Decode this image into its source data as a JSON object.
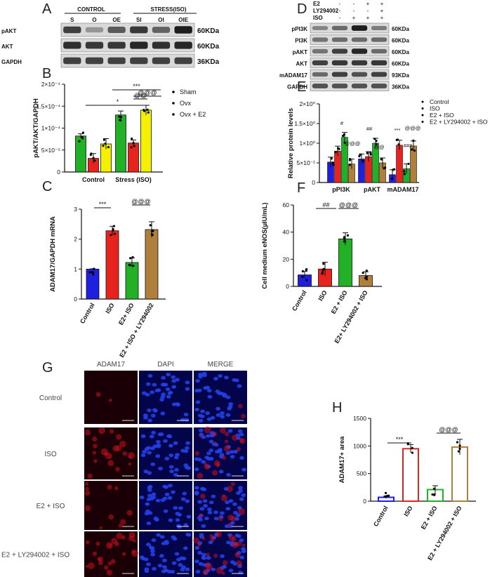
{
  "panel_letters": [
    "A",
    "B",
    "C",
    "D",
    "E",
    "F",
    "G",
    "H"
  ],
  "panelA": {
    "group_headers": [
      "CONTROL",
      "STRESS(ISO)"
    ],
    "lanes": [
      "S",
      "O",
      "OE",
      "SI",
      "OI",
      "OIE"
    ],
    "rows": [
      "pAKT",
      "AKT",
      "GAPDH"
    ],
    "mw": [
      "60KDa",
      "60KDa",
      "36KDa"
    ]
  },
  "panelD": {
    "treat_rows": [
      {
        "label": "E2",
        "signs": [
          "-",
          "-",
          "+",
          "+"
        ]
      },
      {
        "label": "LY294002",
        "signs": [
          "-",
          "-",
          "-",
          "+"
        ]
      },
      {
        "label": "ISO",
        "signs": [
          "-",
          "+",
          "+",
          "+"
        ]
      }
    ],
    "rows": [
      "pPI3K",
      "PI3K",
      "pAKT",
      "AKT",
      "mADAM17",
      "GAPDH"
    ],
    "mw": [
      "60KDa",
      "60KDa",
      "60KDa",
      "60KDa",
      "93KDa",
      "36KDa"
    ]
  },
  "panelG": {
    "col_headers": [
      "ADAM17",
      "DAPI",
      "MERGE"
    ],
    "row_labels": [
      "Control",
      "ISO",
      "E2 + ISO",
      "E2 + LY294002 + ISO"
    ]
  },
  "colors": {
    "blue": "#1f1fe0",
    "red": "#e8231e",
    "green": "#22b026",
    "brown": "#b07f3c",
    "yellow": "#f5f000",
    "micro_red": "#c0101a",
    "micro_blue": "#1530c8"
  },
  "chart_data": [
    {
      "id": "B",
      "type": "bar",
      "ylabel": "pAKT/AKT/GAPDH",
      "categories": [
        "Control",
        "Stress (ISO)"
      ],
      "yticks": [
        "0",
        "5×10⁻⁵",
        "1×10⁻⁴",
        "1.5×10⁻⁴",
        "2×10⁻⁴"
      ],
      "ylim": [
        0,
        0.0002
      ],
      "series": [
        {
          "name": "Sham",
          "color": "#22b026",
          "values": [
            8.2e-05,
            0.00013
          ],
          "err": [
            5e-06,
            9e-06
          ]
        },
        {
          "name": "Ovx",
          "color": "#e8231e",
          "values": [
            3.1e-05,
            6.6e-05
          ],
          "err": [
            1.1e-05,
            7e-06
          ]
        },
        {
          "name": "Ovx + E2",
          "color": "#f5f000",
          "values": [
            6.4e-05,
            0.000141
          ],
          "err": [
            1.2e-05,
            1.1e-05
          ]
        }
      ],
      "sig": [
        "*",
        "***",
        "@@",
        "@@@"
      ],
      "legend": "right"
    },
    {
      "id": "C",
      "type": "bar",
      "ylabel": "ADAM17/GAPDH mRNA",
      "categories": [
        "Control",
        "ISO",
        "E2+ ISO",
        "E2 + ISO + LY294002"
      ],
      "yticks": [
        "0",
        "1",
        "2",
        "3"
      ],
      "ylim": [
        0,
        3
      ],
      "values": [
        1.0,
        2.28,
        1.22,
        2.32
      ],
      "err": [
        0.01,
        0.15,
        0.15,
        0.26
      ],
      "colors": [
        "#1f1fe0",
        "#e8231e",
        "#22b026",
        "#b07f3c"
      ],
      "sig": [
        "***",
        "@@@"
      ]
    },
    {
      "id": "E",
      "type": "bar",
      "ylabel": "Relative protein levels",
      "categories": [
        "pPI3K",
        "pAKT",
        "mADAM17"
      ],
      "yticks": [
        "0",
        "5×10⁻¹",
        "1×10⁰",
        "1.5×10⁰",
        "2×10⁰"
      ],
      "ylim": [
        0,
        2
      ],
      "series": [
        {
          "name": "Control",
          "color": "#1f1fe0",
          "values": [
            0.52,
            0.6,
            0.2
          ]
        },
        {
          "name": "ISO",
          "color": "#e8231e",
          "values": [
            0.8,
            0.66,
            0.95
          ]
        },
        {
          "name": "E2 + ISO",
          "color": "#22b026",
          "values": [
            1.15,
            1.0,
            0.35
          ]
        },
        {
          "name": "E2 + LY294002 + ISO",
          "color": "#b07f3c",
          "values": [
            0.47,
            0.5,
            0.93
          ]
        }
      ],
      "sig": [
        "#",
        "@@@",
        "##",
        "@@",
        "***",
        "###",
        "@@@"
      ],
      "legend": "top-right"
    },
    {
      "id": "F",
      "type": "bar",
      "ylabel": "Cell medium eNOS(µIU/mL)",
      "categories": [
        "Control",
        "ISO",
        "E2 + ISO",
        "E2+ LY294002 + ISO"
      ],
      "yticks": [
        "0",
        "20",
        "40",
        "60"
      ],
      "ylim": [
        0,
        60
      ],
      "values": [
        8.5,
        12.8,
        35.0,
        8.0
      ],
      "err": [
        2.5,
        5.0,
        4.5,
        2.8
      ],
      "colors": [
        "#1f1fe0",
        "#e8231e",
        "#22b026",
        "#b07f3c"
      ],
      "sig": [
        "##",
        "@@@"
      ]
    },
    {
      "id": "H",
      "type": "bar",
      "ylabel": "ADAM17+ area",
      "categories": [
        "Control",
        "ISO",
        "E2 + ISO",
        "E2 + LY294002 + ISO"
      ],
      "yticks": [
        "0",
        "500",
        "1000",
        "1500"
      ],
      "ylim": [
        0,
        1500
      ],
      "values": [
        70,
        950,
        210,
        980
      ],
      "err": [
        20,
        75,
        70,
        140
      ],
      "colors": [
        "#1f1fe0",
        "#e8231e",
        "#22b026",
        "#b07f3c"
      ],
      "fill": "none",
      "sig": [
        "***",
        "@@@"
      ]
    }
  ]
}
